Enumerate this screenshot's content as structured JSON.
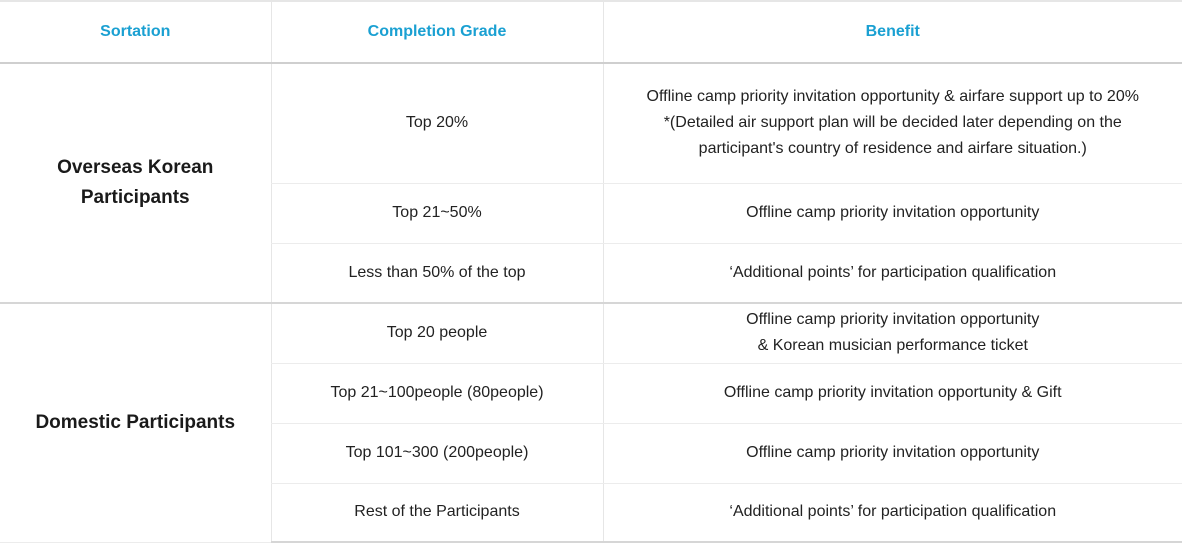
{
  "headers": {
    "sortation": "Sortation",
    "grade": "Completion Grade",
    "benefit": "Benefit"
  },
  "groups": [
    {
      "label_line1": "Overseas Korean",
      "label_line2": "Participants",
      "rows": [
        {
          "grade": "Top 20%",
          "benefit_lines": [
            "Offline camp priority invitation opportunity & airfare support up to 20%",
            "*(Detailed air support plan will be decided later depending on the",
            "participant's country of residence and airfare situation.)"
          ]
        },
        {
          "grade": "Top 21~50%",
          "benefit_lines": [
            "Offline camp priority invitation opportunity"
          ]
        },
        {
          "grade": "Less than 50% of the top",
          "benefit_lines": [
            "‘Additional points’ for participation qualification"
          ]
        }
      ]
    },
    {
      "label_line1": "Domestic Participants",
      "rows": [
        {
          "grade": "Top 20 people",
          "benefit_lines": [
            "Offline camp priority invitation opportunity",
            "& Korean musician performance ticket"
          ]
        },
        {
          "grade": "Top 21~100people (80people)",
          "benefit_lines": [
            "Offline camp priority invitation opportunity & Gift"
          ]
        },
        {
          "grade": "Top 101~300 (200people)",
          "benefit_lines": [
            "Offline camp priority invitation opportunity"
          ]
        },
        {
          "grade": "Rest of the Participants",
          "benefit_lines": [
            "‘Additional points’ for participation qualification"
          ]
        }
      ]
    }
  ]
}
